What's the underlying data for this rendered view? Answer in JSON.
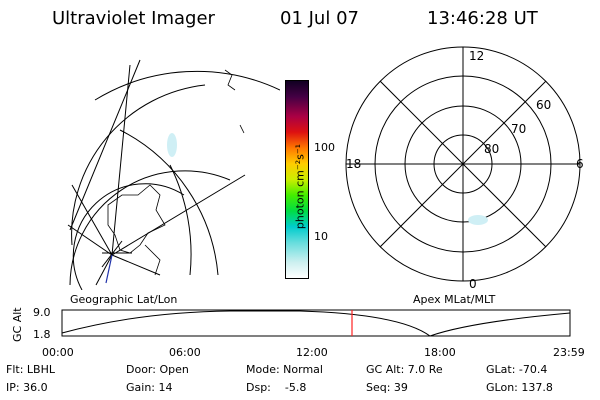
{
  "header": {
    "instrument": "Ultraviolet Imager",
    "date": "01 Jul 07",
    "time": "13:46:28 UT"
  },
  "colorbar": {
    "unit_label": "photon cm⁻²s⁻¹",
    "ticks": [
      "100",
      "10"
    ]
  },
  "polar_plot": {
    "label": "Apex MLat/MLT",
    "mlt_labels": [
      "12",
      "18",
      "6",
      "0"
    ],
    "lat_labels": [
      "60",
      "70",
      "80"
    ]
  },
  "geo_plot": {
    "label": "Geographic Lat/Lon"
  },
  "altitude_plot": {
    "ylabel": "GC Alt",
    "yticks": [
      "9.0",
      "1.8"
    ],
    "xticks": [
      "00:00",
      "06:00",
      "12:00",
      "18:00",
      "23:59"
    ],
    "marker_time": "13:46"
  },
  "info": {
    "flt": "Flt: LBHL",
    "ip": "IP: 36.0",
    "door": "Door: Open",
    "gain": "Gain: 14",
    "mode": "Mode: Normal",
    "dsp": "Dsp:    -5.8",
    "gcalt": "GC Alt: 7.0 Re",
    "seq": "Seq: 39",
    "glat": "GLat: -70.4",
    "glon": "GLon: 137.8"
  }
}
